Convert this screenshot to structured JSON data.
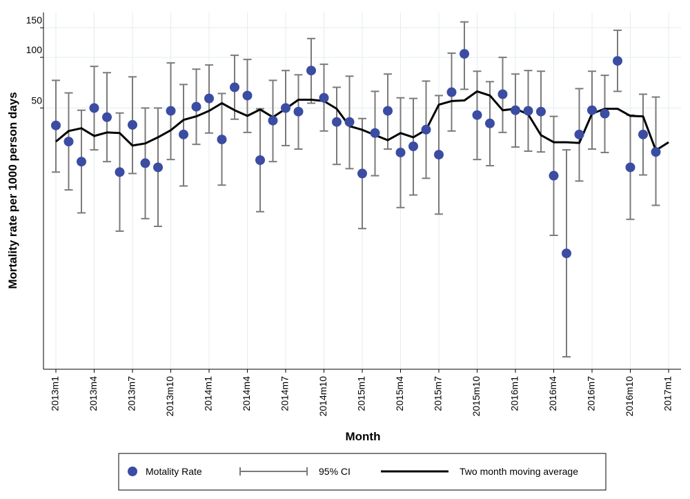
{
  "chart_data": {
    "type": "scatter",
    "ylabel": "Mortality rate per 1000 person days",
    "xlabel": "Month",
    "yscale": "log",
    "ylim": [
      1.4,
      185
    ],
    "yticks": [
      50,
      100,
      150
    ],
    "grid": true,
    "legend": "bottom",
    "categories": [
      "2013m1",
      null,
      null,
      "2013m4",
      null,
      null,
      "2013m7",
      null,
      null,
      "2013m10",
      null,
      null,
      "2014m1",
      null,
      null,
      "2014m4",
      null,
      null,
      "2014m7",
      null,
      null,
      "2014m10",
      null,
      null,
      "2015m1",
      null,
      null,
      "2015m4",
      null,
      null,
      "2015m7",
      null,
      null,
      "2015m10",
      null,
      null,
      "2016m1",
      null,
      null,
      "2016m4",
      null,
      null,
      "2016m7",
      null,
      null,
      "2016m10",
      null,
      null,
      "2017m1"
    ],
    "series": [
      {
        "name": "Motality Rate",
        "type": "scatter",
        "color": "#3b4ca3",
        "values": [
          39.4,
          31.6,
          24,
          50,
          44.1,
          20.8,
          39.7,
          23.5,
          22.2,
          48.1,
          34.8,
          50.9,
          57,
          32.5,
          66.4,
          59.3,
          24.5,
          42.1,
          50,
          47.6,
          83.5,
          57.5,
          41.3,
          41.3,
          20.4,
          35.5,
          48.1,
          27.2,
          29.6,
          37.2,
          26.4,
          62.1,
          104.9,
          45.4,
          40.5,
          60.4,
          48.5,
          48.1,
          47.6,
          19.8,
          6.84,
          34.8,
          48.5,
          46.3,
          95.3,
          22.2,
          34.8,
          27.4,
          null
        ]
      },
      {
        "name": "95% CI",
        "type": "errorbar",
        "color": "#7a7a7a",
        "lower": [
          20.8,
          16.3,
          11.9,
          28.2,
          24,
          9.27,
          20.4,
          11,
          9.9,
          24.7,
          17.2,
          30.4,
          35.5,
          17.4,
          42.9,
          35.8,
          12.1,
          24,
          29.9,
          28.5,
          53.4,
          36.5,
          23.1,
          21.8,
          9.6,
          19.8,
          28.5,
          12.8,
          15.2,
          19.1,
          11.7,
          36.5,
          64.6,
          24.7,
          22.7,
          35.8,
          29.3,
          27.7,
          27.4,
          8.75,
          1.66,
          18.4,
          28.5,
          27.2,
          62.8,
          10.9,
          20,
          13.2,
          null
        ],
        "upper": [
          73,
          61.5,
          48.5,
          88.4,
          81.1,
          46.7,
          76.6,
          50,
          50,
          92.7,
          69,
          85.1,
          90.1,
          61,
          102.9,
          97.2,
          49.5,
          73,
          83.5,
          78.8,
          129.4,
          91,
          66.4,
          77.3,
          43.3,
          62.8,
          79.6,
          57.5,
          57,
          72.3,
          59.3,
          105.9,
          162.5,
          82.7,
          71.7,
          100,
          79.6,
          83.5,
          82.7,
          44.6,
          28.2,
          65.2,
          82.7,
          78.2,
          144.9,
          45.4,
          60.4,
          58.1,
          null
        ]
      },
      {
        "name": "Two month moving average",
        "type": "line",
        "color": "#000000",
        "values": [
          31.6,
          36.5,
          37.9,
          34.1,
          35.8,
          35.5,
          29.9,
          30.8,
          33.5,
          36.9,
          42.5,
          44.6,
          48.1,
          53.4,
          48.5,
          44.9,
          49,
          44.1,
          49.5,
          56,
          56,
          55,
          49.5,
          39,
          37.1,
          34.5,
          32.2,
          35.5,
          33.5,
          37.1,
          52.3,
          55,
          55.5,
          62.8,
          59.3,
          48.5,
          49.5,
          45.9,
          34.5,
          31.3,
          31.3,
          31,
          46.3,
          49.5,
          49.5,
          44.9,
          44.6,
          28,
          31.3
        ]
      }
    ]
  }
}
